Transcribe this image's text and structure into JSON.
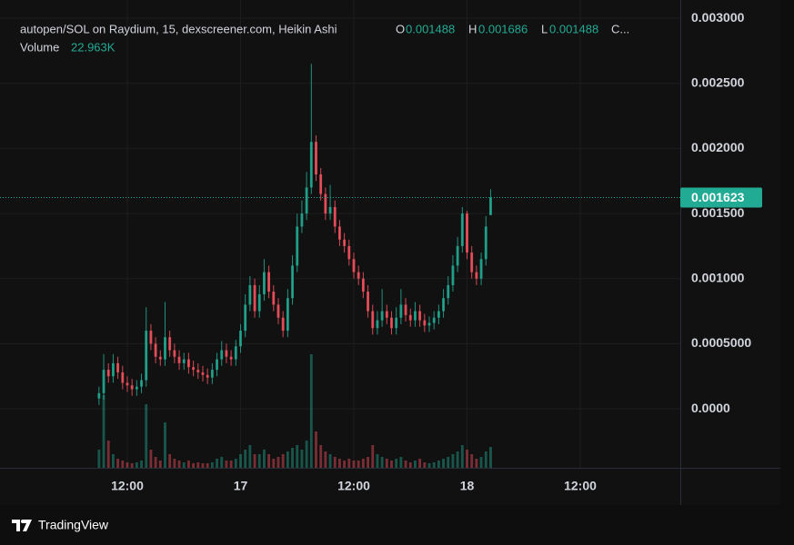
{
  "chart_data": {
    "type": "candlestick",
    "title": "autopen/SOL on Raydium, 15, dexscreener.com, Heikin Ashi",
    "legend": {
      "open_label": "O",
      "high_label": "H",
      "low_label": "L",
      "close_label": "C...",
      "volume_label": "Volume",
      "volume_value": "22.963K"
    },
    "brand": "TradingView",
    "up_color": "#22ab94",
    "down_color": "#f7525f",
    "grid": true,
    "xlim": [
      -1.49,
      70.6
    ],
    "xticks": [
      {
        "value": 12,
        "label": "12:00"
      },
      {
        "value": 24,
        "label": "17"
      },
      {
        "value": 36,
        "label": "12:00"
      },
      {
        "value": 48,
        "label": "18"
      },
      {
        "value": 60,
        "label": "12:00"
      }
    ],
    "ylim": [
      -0.000453,
      0.00314
    ],
    "yticks": [
      {
        "value": 0,
        "label": "0.0000"
      },
      {
        "value": 0.0005,
        "label": "0.0005000"
      },
      {
        "value": 0.001,
        "label": "0.001000"
      },
      {
        "value": 0.0015,
        "label": "0.001500"
      },
      {
        "value": 0.002,
        "label": "0.002000"
      },
      {
        "value": 0.0025,
        "label": "0.002500"
      },
      {
        "value": 0.003,
        "label": "0.003000"
      }
    ],
    "x": [
      9,
      9.5,
      10,
      10.5,
      11,
      11.5,
      12,
      12.5,
      13,
      13.5,
      14,
      14.5,
      15,
      15.5,
      16,
      16.5,
      17,
      17.5,
      18,
      18.5,
      19,
      19.5,
      20,
      20.5,
      21,
      21.5,
      22,
      22.5,
      23,
      23.5,
      24,
      24.5,
      25,
      25.5,
      26,
      26.5,
      27,
      27.5,
      28,
      28.5,
      29,
      29.5,
      30,
      30.5,
      31,
      31.5,
      32,
      32.5,
      33,
      33.5,
      34,
      34.5,
      35,
      35.5,
      36,
      36.5,
      37,
      37.5,
      38,
      38.5,
      39,
      39.5,
      40,
      40.5,
      41,
      41.5,
      42,
      42.5,
      43,
      43.5,
      44,
      44.5,
      45,
      45.5,
      46,
      46.5,
      47,
      47.5,
      48,
      48.5,
      49,
      49.5,
      50,
      50.5
    ],
    "open": [
      8e-05,
      0.00012,
      0.0003,
      0.00025,
      0.00035,
      0.00028,
      0.0002,
      0.00018,
      0.00015,
      0.00017,
      0.00022,
      0.0006,
      0.0005,
      0.0004,
      0.00038,
      0.00055,
      0.00045,
      0.0004,
      0.00035,
      0.00038,
      0.00032,
      0.0003,
      0.00028,
      0.00026,
      0.00024,
      0.0003,
      0.00038,
      0.00045,
      0.0004,
      0.00038,
      0.00048,
      0.0006,
      0.0008,
      0.00095,
      0.00075,
      0.00088,
      0.00105,
      0.0009,
      0.0008,
      0.0007,
      0.0006,
      0.00085,
      0.0011,
      0.0014,
      0.0015,
      0.0017,
      0.00205,
      0.0018,
      0.00165,
      0.0015,
      0.00155,
      0.0014,
      0.0013,
      0.00125,
      0.00115,
      0.00105,
      0.001,
      0.0009,
      0.00075,
      0.00062,
      0.00068,
      0.00075,
      0.0007,
      0.00062,
      0.0007,
      0.0008,
      0.00072,
      0.00068,
      0.00075,
      0.00068,
      0.00064,
      0.00066,
      0.0007,
      0.00075,
      0.00085,
      0.00095,
      0.0011,
      0.00125,
      0.0015,
      0.0012,
      0.00105,
      0.001,
      0.00115,
      0.001488
    ],
    "high": [
      0.00017,
      0.00042,
      0.00035,
      0.00042,
      0.0004,
      0.00033,
      0.00025,
      0.00023,
      0.00022,
      0.00027,
      0.00078,
      0.00065,
      0.00055,
      0.00045,
      0.00082,
      0.0006,
      0.0005,
      0.00045,
      0.00043,
      0.00043,
      0.00037,
      0.00035,
      0.00033,
      0.00031,
      0.00035,
      0.00043,
      0.00052,
      0.0005,
      0.00045,
      0.00053,
      0.00065,
      0.00088,
      0.00102,
      0.001,
      0.00095,
      0.00115,
      0.0011,
      0.00095,
      0.00085,
      0.00075,
      0.00092,
      0.00118,
      0.0015,
      0.0016,
      0.00182,
      0.00265,
      0.0021,
      0.00185,
      0.0017,
      0.00172,
      0.0016,
      0.00145,
      0.00135,
      0.0013,
      0.0012,
      0.0011,
      0.00105,
      0.00095,
      0.0008,
      0.00075,
      0.00092,
      0.0008,
      0.00075,
      0.00078,
      0.00092,
      0.00085,
      0.00077,
      0.00082,
      0.0008,
      0.00073,
      0.00071,
      0.00075,
      0.0008,
      0.00092,
      0.00102,
      0.00118,
      0.00132,
      0.00155,
      0.00152,
      0.00125,
      0.0011,
      0.0012,
      0.00148,
      0.001686
    ],
    "low": [
      3e-05,
      7e-05,
      0.0002,
      0.0002,
      0.00023,
      0.00015,
      0.00013,
      0.0001,
      0.0001,
      0.00012,
      0.00017,
      0.00045,
      0.00035,
      0.00033,
      0.00033,
      0.0004,
      0.00035,
      0.0003,
      0.0003,
      0.00027,
      0.00025,
      0.00023,
      0.00021,
      0.00019,
      0.00019,
      0.00025,
      0.00033,
      0.00035,
      0.00033,
      0.00033,
      0.00043,
      0.00055,
      0.00075,
      0.0007,
      0.0007,
      0.00083,
      0.00085,
      0.00075,
      0.00065,
      0.00055,
      0.00055,
      0.0008,
      0.00105,
      0.00135,
      0.00145,
      0.00165,
      0.00175,
      0.0016,
      0.00145,
      0.00145,
      0.00135,
      0.00125,
      0.0012,
      0.0011,
      0.001,
      0.00095,
      0.00085,
      0.0007,
      0.00057,
      0.00057,
      0.00063,
      0.00065,
      0.00057,
      0.00057,
      0.00065,
      0.00067,
      0.00063,
      0.00063,
      0.00063,
      0.00059,
      0.00059,
      0.00061,
      0.00065,
      0.0007,
      0.0008,
      0.0009,
      0.00105,
      0.0012,
      0.00115,
      0.001,
      0.00095,
      0.00095,
      0.0011,
      0.001488
    ],
    "close": [
      0.00012,
      0.0003,
      0.00025,
      0.00035,
      0.00028,
      0.0002,
      0.00018,
      0.00015,
      0.00017,
      0.00022,
      0.0006,
      0.0005,
      0.0004,
      0.00038,
      0.00055,
      0.00045,
      0.0004,
      0.00035,
      0.00038,
      0.00032,
      0.0003,
      0.00028,
      0.00026,
      0.00024,
      0.0003,
      0.00038,
      0.00045,
      0.0004,
      0.00038,
      0.00048,
      0.0006,
      0.0008,
      0.00095,
      0.00075,
      0.00088,
      0.00105,
      0.0009,
      0.0008,
      0.0007,
      0.0006,
      0.00085,
      0.0011,
      0.0014,
      0.0015,
      0.0017,
      0.00205,
      0.0018,
      0.00165,
      0.0015,
      0.00155,
      0.0014,
      0.0013,
      0.00125,
      0.00115,
      0.00105,
      0.001,
      0.0009,
      0.00075,
      0.00062,
      0.00068,
      0.00075,
      0.0007,
      0.00062,
      0.0007,
      0.0008,
      0.00072,
      0.00068,
      0.00075,
      0.00068,
      0.00064,
      0.00066,
      0.0007,
      0.00075,
      0.00085,
      0.00095,
      0.0011,
      0.00125,
      0.0015,
      0.0012,
      0.00105,
      0.001,
      0.00115,
      0.0014,
      0.001623
    ],
    "volume": [
      20,
      80,
      30,
      15,
      10,
      8,
      6,
      5,
      6,
      8,
      70,
      20,
      12,
      8,
      50,
      15,
      10,
      8,
      6,
      8,
      5,
      6,
      5,
      5,
      6,
      10,
      12,
      8,
      8,
      10,
      15,
      20,
      25,
      15,
      15,
      20,
      15,
      10,
      12,
      15,
      18,
      22,
      25,
      20,
      30,
      125,
      40,
      25,
      18,
      15,
      12,
      10,
      8,
      10,
      8,
      8,
      10,
      12,
      25,
      15,
      12,
      10,
      8,
      10,
      12,
      8,
      6,
      8,
      10,
      6,
      5,
      6,
      8,
      10,
      12,
      15,
      18,
      25,
      20,
      15,
      10,
      12,
      18,
      22.963
    ]
  }
}
